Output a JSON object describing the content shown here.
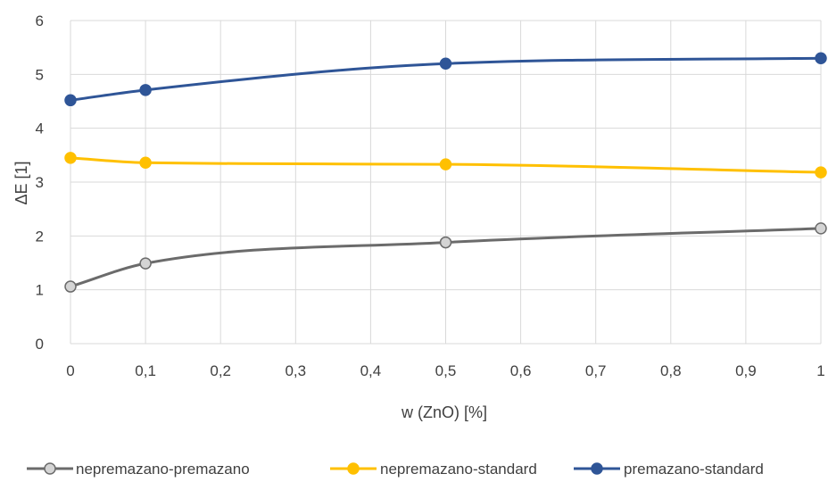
{
  "chart_data": {
    "type": "line",
    "title": "",
    "xlabel": "w (ZnO) [%]",
    "ylabel": "ΔE [1]",
    "xlim": [
      0,
      1
    ],
    "ylim": [
      0,
      6
    ],
    "x_ticks": [
      0,
      0.1,
      0.2,
      0.3,
      0.4,
      0.5,
      0.6,
      0.7,
      0.8,
      0.9,
      1
    ],
    "x_tick_labels": [
      "0",
      "0,1",
      "0,2",
      "0,3",
      "0,4",
      "0,5",
      "0,6",
      "0,7",
      "0,8",
      "0,9",
      "1"
    ],
    "y_ticks": [
      0,
      1,
      2,
      3,
      4,
      5,
      6
    ],
    "y_tick_labels": [
      "0",
      "1",
      "2",
      "3",
      "4",
      "5",
      "6"
    ],
    "grid": true,
    "smooth": true,
    "legend_position": "bottom",
    "series": [
      {
        "name": "nepremazano-premazano",
        "color": "#6b6b6b",
        "marker_fill": "#d4d4d4",
        "x": [
          0,
          0.1,
          0.5,
          1
        ],
        "y": [
          1.06,
          1.49,
          1.88,
          2.14
        ]
      },
      {
        "name": "nepremazano-standard",
        "color": "#ffc000",
        "marker_fill": "#ffc000",
        "x": [
          0,
          0.1,
          0.5,
          1
        ],
        "y": [
          3.45,
          3.36,
          3.33,
          3.18
        ]
      },
      {
        "name": "premazano-standard",
        "color": "#2f5597",
        "marker_fill": "#2f5597",
        "x": [
          0,
          0.1,
          0.5,
          1
        ],
        "y": [
          4.52,
          4.71,
          5.2,
          5.3
        ]
      }
    ]
  }
}
